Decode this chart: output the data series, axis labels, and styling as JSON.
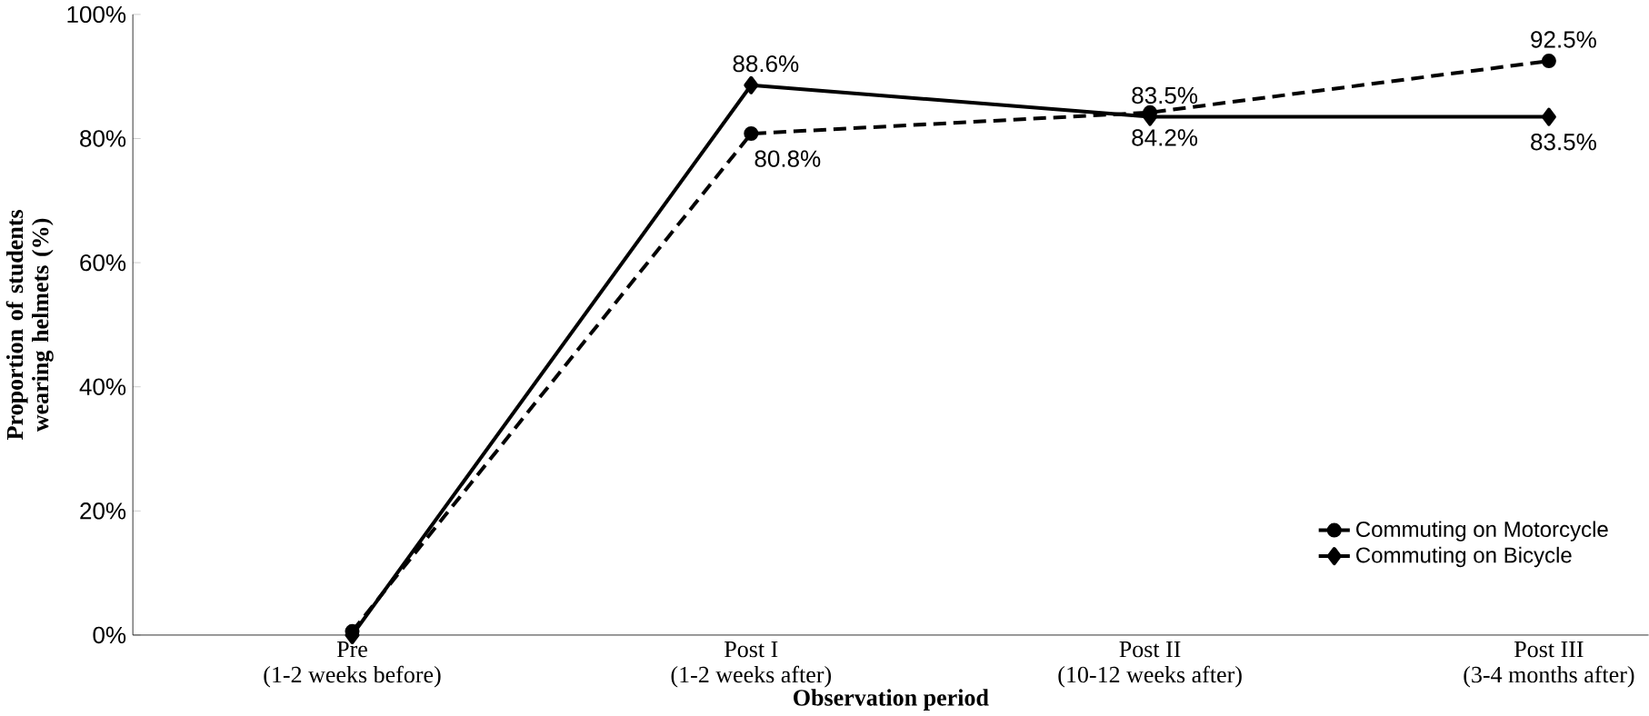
{
  "chart_data": {
    "type": "line",
    "xlabel": "Observation period",
    "ylabel": "Proportion of students wearing helmets (%)",
    "categories": [
      "Pre\n(1-2 weeks before)",
      "Post  I\n(1-2 weeks after)",
      "Post II\n(10-12 weeks after)",
      "Post III\n(3-4 months after)"
    ],
    "series": [
      {
        "name": "Commuting on Motorcycle",
        "color": "#000000",
        "values": [
          0.6,
          80.8,
          84.2,
          92.5
        ],
        "value_labels": [
          null,
          "80.8%",
          "84.2%",
          "92.5%"
        ],
        "marker": "circle",
        "line_style": "dashed"
      },
      {
        "name": "Commuting on Bicycle",
        "color": "#000000",
        "values": [
          0,
          88.6,
          83.5,
          83.5
        ],
        "value_labels": [
          null,
          "88.6%",
          "83.5%",
          "83.5%"
        ],
        "marker": "diamond",
        "line_style": "solid"
      }
    ],
    "ylim": [
      0,
      100
    ],
    "yticks": [
      {
        "value": 0,
        "label": "0%"
      },
      {
        "value": 20,
        "label": "20%"
      },
      {
        "value": 40,
        "label": "40%"
      },
      {
        "value": 60,
        "label": "60%"
      },
      {
        "value": 80,
        "label": "80%"
      },
      {
        "value": 100,
        "label": "100%"
      }
    ],
    "grid": false,
    "legend": "bottom right"
  }
}
